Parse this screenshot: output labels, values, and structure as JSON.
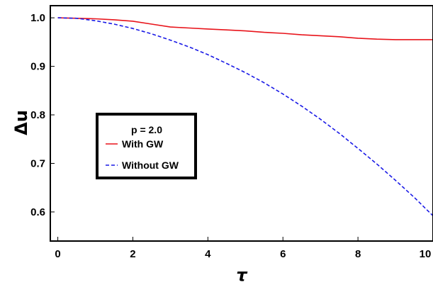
{
  "chart_data": {
    "type": "line",
    "title": "",
    "xlabel": "τ",
    "ylabel": "Δu",
    "xlim": [
      -0.2,
      10.0
    ],
    "ylim": [
      0.54,
      1.025
    ],
    "xticks": [
      0,
      2,
      4,
      6,
      8,
      10
    ],
    "xtick_labels": [
      "0",
      "2",
      "4",
      "6",
      "8",
      "10"
    ],
    "yticks": [
      0.6,
      0.7,
      0.8,
      0.9,
      1.0
    ],
    "ytick_labels": [
      "0.6",
      "0.7",
      "0.8",
      "0.9",
      "1.0"
    ],
    "grid": false,
    "legend": {
      "title": "p = 2.0",
      "placement": "center-left"
    },
    "x": [
      0,
      0.5,
      1,
      1.5,
      2,
      2.5,
      3,
      3.5,
      4,
      4.5,
      5,
      5.5,
      6,
      6.5,
      7,
      7.5,
      8,
      8.5,
      9,
      9.5,
      10
    ],
    "series": [
      {
        "name": "With GW",
        "color": "#e8141b",
        "dash": "solid",
        "values": [
          1.0,
          0.999,
          0.998,
          0.996,
          0.993,
          0.987,
          0.981,
          0.979,
          0.977,
          0.975,
          0.973,
          0.97,
          0.968,
          0.965,
          0.963,
          0.961,
          0.958,
          0.956,
          0.955,
          0.955,
          0.955
        ]
      },
      {
        "name": "Without GW",
        "color": "#1a1ae6",
        "dash": "dashed",
        "values": [
          1.0,
          0.999,
          0.994,
          0.987,
          0.978,
          0.967,
          0.954,
          0.94,
          0.924,
          0.906,
          0.887,
          0.866,
          0.843,
          0.818,
          0.791,
          0.762,
          0.731,
          0.699,
          0.665,
          0.63,
          0.592
        ]
      }
    ]
  }
}
